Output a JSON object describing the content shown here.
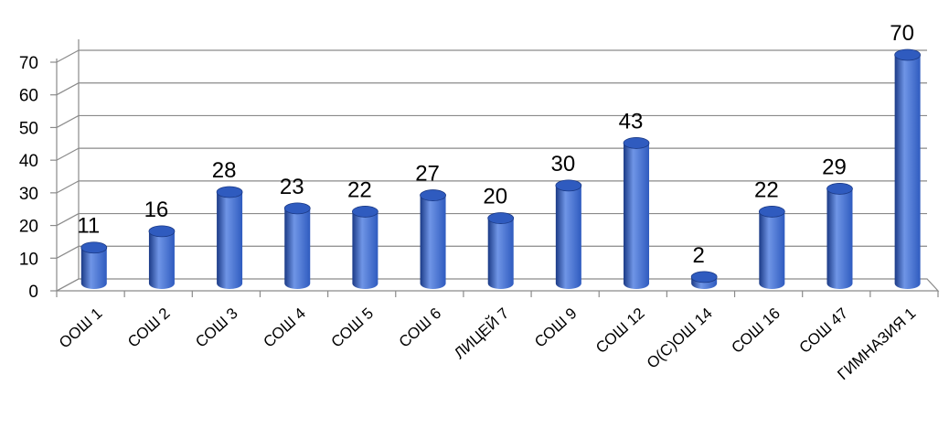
{
  "chart_data": {
    "type": "bar",
    "title": "",
    "xlabel": "",
    "ylabel": "",
    "categories": [
      "ООШ 1",
      "СОШ 2",
      "СОШ 3",
      "СОШ 4",
      "СОШ 5",
      "СОШ 6",
      "ЛИЦЕЙ 7",
      "СОШ 9",
      "СОШ 12",
      "О(С)ОШ 14",
      "СОШ 16",
      "СОШ 47",
      "ГИМНАЗИЯ 1"
    ],
    "values": [
      11,
      16,
      28,
      23,
      22,
      27,
      20,
      30,
      43,
      2,
      22,
      29,
      70
    ],
    "ylim": [
      0,
      70
    ],
    "yticks": [
      0,
      10,
      20,
      30,
      40,
      50,
      60,
      70
    ],
    "grid": true,
    "legend": "none",
    "style": "3d-cylinder",
    "bar_color": "#2f5bbf",
    "bar_highlight": "#6f95e6",
    "bar_shadow": "#1b3a86",
    "grid_color": "#8a8a8a"
  }
}
